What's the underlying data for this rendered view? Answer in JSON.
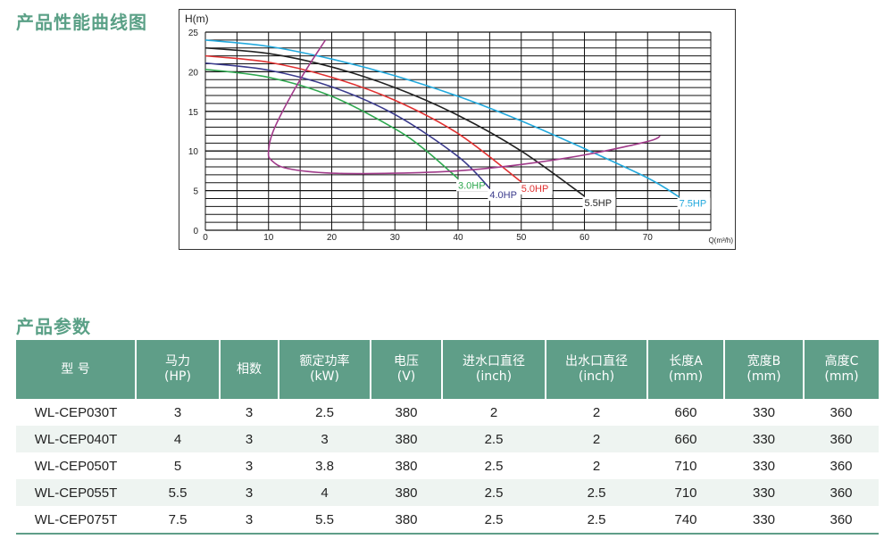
{
  "section_titles": {
    "curve": "产品性能曲线图",
    "params": "产品参数"
  },
  "chart_data": {
    "type": "line",
    "title": "",
    "ylabel": "H(m)",
    "xlabel": "Q(m³/h)",
    "xlim": [
      0,
      80
    ],
    "ylim": [
      0,
      25
    ],
    "xticks": [
      "0",
      "10",
      "20",
      "30",
      "40",
      "50",
      "60",
      "70"
    ],
    "yticks": [
      "0",
      "5",
      "10",
      "15",
      "20",
      "25"
    ],
    "grid": true,
    "series": [
      {
        "name": "3.0HP",
        "color": "#2ea84f",
        "x": [
          0,
          10,
          20,
          30,
          35,
          40
        ],
        "y": [
          20.3,
          19.3,
          16.9,
          12.8,
          10.0,
          6.5
        ]
      },
      {
        "name": "4.0HP",
        "color": "#3a3a8c",
        "x": [
          0,
          10,
          20,
          30,
          40,
          45
        ],
        "y": [
          21.1,
          20.2,
          18.1,
          14.6,
          9.3,
          5.3
        ]
      },
      {
        "name": "5.0HP",
        "color": "#e03131",
        "x": [
          0,
          10,
          20,
          30,
          40,
          50
        ],
        "y": [
          22.0,
          21.2,
          19.3,
          16.4,
          12.2,
          6.1
        ]
      },
      {
        "name": "5.5HP",
        "color": "#222222",
        "x": [
          0,
          10,
          20,
          30,
          40,
          50,
          60
        ],
        "y": [
          23.0,
          22.3,
          20.6,
          18.0,
          14.5,
          10.0,
          4.3
        ]
      },
      {
        "name": "7.5HP",
        "color": "#22a9dd",
        "x": [
          0,
          10,
          20,
          30,
          40,
          50,
          60,
          70,
          75
        ],
        "y": [
          24.0,
          23.2,
          21.6,
          19.5,
          16.9,
          13.8,
          10.3,
          6.6,
          4.2
        ]
      },
      {
        "name": "",
        "color": "#a03a8a",
        "x": [
          19,
          15,
          11,
          10,
          10.5,
          13,
          20,
          30,
          40,
          50,
          60,
          70,
          72
        ],
        "y": [
          24.0,
          19.0,
          13.0,
          10.0,
          8.8,
          7.8,
          7.2,
          7.2,
          7.5,
          8.3,
          9.5,
          11.2,
          11.9
        ]
      }
    ]
  },
  "table": {
    "headers": [
      [
        "型  号"
      ],
      [
        "马力",
        "(HP)"
      ],
      [
        "相数"
      ],
      [
        "额定功率",
        "(kW)"
      ],
      [
        "电压",
        "(V)"
      ],
      [
        "进水口直径",
        "(inch)"
      ],
      [
        "出水口直径",
        "(inch)"
      ],
      [
        "长度A",
        "(mm)"
      ],
      [
        "宽度B",
        "(mm)"
      ],
      [
        "高度C",
        "(mm)"
      ]
    ],
    "rows": [
      [
        "WL-CEP030T",
        "3",
        "3",
        "2.5",
        "380",
        "2",
        "2",
        "660",
        "330",
        "360"
      ],
      [
        "WL-CEP040T",
        "4",
        "3",
        "3",
        "380",
        "2.5",
        "2",
        "660",
        "330",
        "360"
      ],
      [
        "WL-CEP050T",
        "5",
        "3",
        "3.8",
        "380",
        "2.5",
        "2",
        "710",
        "330",
        "360"
      ],
      [
        "WL-CEP055T",
        "5.5",
        "3",
        "4",
        "380",
        "2.5",
        "2.5",
        "710",
        "330",
        "360"
      ],
      [
        "WL-CEP075T",
        "7.5",
        "3",
        "5.5",
        "380",
        "2.5",
        "2.5",
        "740",
        "330",
        "360"
      ]
    ]
  }
}
